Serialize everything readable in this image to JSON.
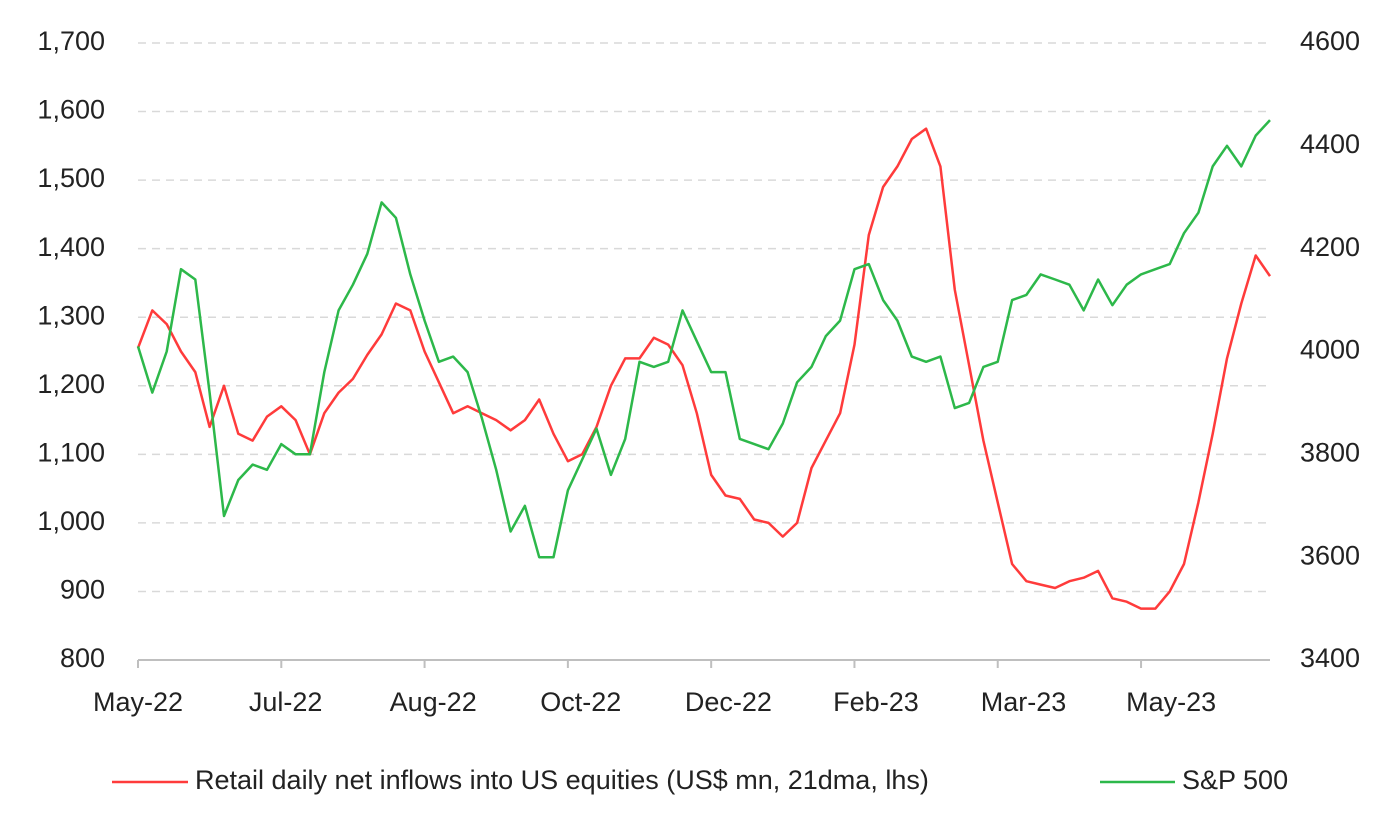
{
  "chart_data": {
    "type": "line",
    "categories": [
      "May-22",
      null,
      null,
      null,
      null,
      null,
      null,
      null,
      null,
      null,
      "Jul-22",
      null,
      null,
      null,
      null,
      null,
      null,
      null,
      null,
      null,
      "Aug-22",
      null,
      null,
      null,
      null,
      null,
      null,
      null,
      null,
      null,
      "Oct-22",
      null,
      null,
      null,
      null,
      null,
      null,
      null,
      null,
      null,
      "Dec-22",
      null,
      null,
      null,
      null,
      null,
      null,
      null,
      null,
      null,
      "Feb-23",
      null,
      null,
      null,
      null,
      null,
      null,
      null,
      null,
      null,
      "Mar-23",
      null,
      null,
      null,
      null,
      null,
      null,
      null,
      null,
      null,
      "May-23",
      null,
      null,
      null,
      null,
      null,
      null,
      null,
      null,
      null
    ],
    "series": [
      {
        "name": "Retail daily net inflows into US equities (US$ mn, 21dma, lhs)",
        "color": "#ff3b3b",
        "values": [
          1255,
          1310,
          1290,
          1250,
          1220,
          1140,
          1200,
          1130,
          1120,
          1155,
          1170,
          1150,
          1100,
          1160,
          1190,
          1210,
          1245,
          1275,
          1320,
          1310,
          1250,
          1205,
          1160,
          1170,
          1160,
          1150,
          1135,
          1150,
          1180,
          1130,
          1090,
          1100,
          1140,
          1200,
          1240,
          1240,
          1270,
          1260,
          1230,
          1160,
          1070,
          1040,
          1035,
          1005,
          1000,
          980,
          1000,
          1080,
          1120,
          1160,
          1260,
          1420,
          1490,
          1520,
          1560,
          1575,
          1520,
          1340,
          1230,
          1120,
          1030,
          940,
          915,
          910,
          905,
          915,
          920,
          930,
          890,
          885,
          875,
          875,
          900,
          940,
          1030,
          1130,
          1240,
          1320,
          1390,
          1360
        ]
      },
      {
        "name": "S&P 500",
        "color": "#2db84a",
        "axis": "y2",
        "values": [
          4010,
          3920,
          4000,
          4160,
          4140,
          3920,
          3680,
          3750,
          3780,
          3770,
          3820,
          3800,
          3800,
          3960,
          4080,
          4130,
          4190,
          4290,
          4260,
          4150,
          4060,
          3980,
          3990,
          3960,
          3870,
          3770,
          3650,
          3700,
          3600,
          3600,
          3730,
          3790,
          3850,
          3760,
          3830,
          3980,
          3970,
          3980,
          4080,
          4020,
          3960,
          3960,
          3830,
          3820,
          3810,
          3860,
          3940,
          3970,
          4030,
          4060,
          4160,
          4170,
          4100,
          4060,
          3990,
          3980,
          3990,
          3890,
          3900,
          3970,
          3980,
          4100,
          4110,
          4150,
          4140,
          4130,
          4080,
          4140,
          4090,
          4130,
          4150,
          4160,
          4170,
          4230,
          4270,
          4360,
          4400,
          4360,
          4420,
          4450
        ]
      }
    ],
    "ylim": [
      800,
      1700
    ],
    "yticks": [
      800,
      900,
      {
        "value": 1000,
        "label": "1,000"
      },
      {
        "value": 1100,
        "label": "1,100"
      },
      {
        "value": 1200,
        "label": "1,200"
      },
      {
        "value": 1300,
        "label": "1,300"
      },
      {
        "value": 1400,
        "label": "1,400"
      },
      {
        "value": 1500,
        "label": "1,500"
      },
      {
        "value": 1600,
        "label": "1,600"
      },
      {
        "value": 1700,
        "label": "1,700"
      }
    ],
    "y2lim": [
      3400,
      4600
    ],
    "y2ticks": [
      3400,
      3600,
      3800,
      4000,
      4200,
      4400,
      4600
    ],
    "grid": true,
    "legend": "bottom"
  }
}
